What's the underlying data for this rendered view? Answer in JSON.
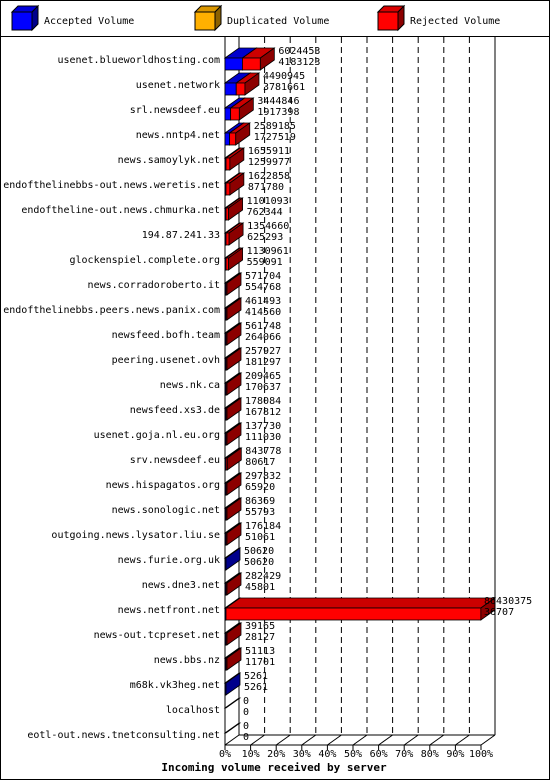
{
  "chart_data": {
    "type": "bar",
    "orientation": "horizontal",
    "style": "3d",
    "xlabel": "Incoming volume received by server",
    "xlim": [
      0,
      100
    ],
    "x_unit": "%",
    "xticks": [
      "0%",
      "10%",
      "20%",
      "30%",
      "40%",
      "50%",
      "60%",
      "70%",
      "80%",
      "90%",
      "100%"
    ],
    "grid": "vertical dashed",
    "legend_position": "top",
    "series": [
      {
        "name": "Accepted Volume",
        "color": "#0000ff"
      },
      {
        "name": "Duplicated Volume",
        "color": "#ffb000"
      },
      {
        "name": "Rejected Volume",
        "color": "#ff0000"
      }
    ],
    "categories": [
      "usenet.blueworldhosting.com",
      "usenet.network",
      "srl.newsdeef.eu",
      "news.nntp4.net",
      "news.samoylyk.net",
      "endofthelinebbs-out.news.weretis.net",
      "endoftheline-out.news.chmurka.net",
      "194.87.241.33",
      "glockenspiel.complete.org",
      "news.corradoroberto.it",
      "endofthelinebbs.peers.news.panix.com",
      "newsfeed.bofh.team",
      "peering.usenet.ovh",
      "news.nk.ca",
      "newsfeed.xs3.de",
      "usenet.goja.nl.eu.org",
      "srv.newsdeef.eu",
      "news.hispagatos.org",
      "news.sonologic.net",
      "outgoing.news.lysator.liu.se",
      "news.furie.org.uk",
      "news.dne3.net",
      "news.netfront.net",
      "news-out.tcpreset.net",
      "news.bbs.nz",
      "m68k.vk3heg.net",
      "localhost",
      "eotl-out.news.tnetconsulting.net"
    ],
    "rows": [
      {
        "server": "usenet.blueworldhosting.com",
        "total_volume": "6024453",
        "accepted_volume": "4183123",
        "accepted_pct": 6.8,
        "rejected_pct": 7.0
      },
      {
        "server": "usenet.network",
        "total_volume": "4490945",
        "accepted_volume": "3781661",
        "accepted_pct": 4.4,
        "rejected_pct": 3.4
      },
      {
        "server": "srl.newsdeef.eu",
        "total_volume": "3444846",
        "accepted_volume": "1917398",
        "accepted_pct": 2.2,
        "rejected_pct": 3.4
      },
      {
        "server": "news.nntp4.net",
        "total_volume": "2589185",
        "accepted_volume": "1727519",
        "accepted_pct": 1.8,
        "rejected_pct": 2.4
      },
      {
        "server": "news.samoylyk.net",
        "total_volume": "1655911",
        "accepted_volume": "1259977",
        "accepted_pct": 0.4,
        "rejected_pct": 1.5
      },
      {
        "server": "endofthelinebbs-out.news.weretis.net",
        "total_volume": "1622858",
        "accepted_volume": "871780",
        "accepted_pct": 0.3,
        "rejected_pct": 1.6
      },
      {
        "server": "endoftheline-out.news.chmurka.net",
        "total_volume": "1101093",
        "accepted_volume": "762344",
        "accepted_pct": 0.3,
        "rejected_pct": 1.1
      },
      {
        "server": "194.87.241.33",
        "total_volume": "1354660",
        "accepted_volume": "625293",
        "accepted_pct": 0.3,
        "rejected_pct": 1.3
      },
      {
        "server": "glockenspiel.complete.org",
        "total_volume": "1130961",
        "accepted_volume": "559091",
        "accepted_pct": 0.3,
        "rejected_pct": 1.1
      },
      {
        "server": "news.corradoroberto.it",
        "total_volume": "571704",
        "accepted_volume": "554768",
        "accepted_pct": 0.3,
        "rejected_pct": 0.3
      },
      {
        "server": "endofthelinebbs.peers.news.panix.com",
        "total_volume": "461493",
        "accepted_volume": "414560",
        "accepted_pct": 0.3,
        "rejected_pct": 0.2
      },
      {
        "server": "newsfeed.bofh.team",
        "total_volume": "561748",
        "accepted_volume": "264066",
        "accepted_pct": 0.2,
        "rejected_pct": 0.4
      },
      {
        "server": "peering.usenet.ovh",
        "total_volume": "257927",
        "accepted_volume": "181297",
        "accepted_pct": 0.1,
        "rejected_pct": 0.1
      },
      {
        "server": "news.nk.ca",
        "total_volume": "209465",
        "accepted_volume": "170637",
        "accepted_pct": 0.1,
        "rejected_pct": 0.1
      },
      {
        "server": "newsfeed.xs3.de",
        "total_volume": "178084",
        "accepted_volume": "167812",
        "accepted_pct": 0.1,
        "rejected_pct": 0.1
      },
      {
        "server": "usenet.goja.nl.eu.org",
        "total_volume": "137730",
        "accepted_volume": "111030",
        "accepted_pct": 0.1,
        "rejected_pct": 0.1
      },
      {
        "server": "srv.newsdeef.eu",
        "total_volume": "843778",
        "accepted_volume": "80617",
        "accepted_pct": 0.1,
        "rejected_pct": 0.8
      },
      {
        "server": "news.hispagatos.org",
        "total_volume": "297832",
        "accepted_volume": "65920",
        "accepted_pct": 0.1,
        "rejected_pct": 0.3
      },
      {
        "server": "news.sonologic.net",
        "total_volume": "86369",
        "accepted_volume": "55793",
        "accepted_pct": 0.05,
        "rejected_pct": 0.05
      },
      {
        "server": "outgoing.news.lysator.liu.se",
        "total_volume": "176184",
        "accepted_volume": "51061",
        "accepted_pct": 0.05,
        "rejected_pct": 0.15
      },
      {
        "server": "news.furie.org.uk",
        "total_volume": "50620",
        "accepted_volume": "50620",
        "accepted_pct": 0.05,
        "rejected_pct": 0
      },
      {
        "server": "news.dne3.net",
        "total_volume": "282429",
        "accepted_volume": "45801",
        "accepted_pct": 0.05,
        "rejected_pct": 0.25
      },
      {
        "server": "news.netfront.net",
        "total_volume": "86430375",
        "accepted_volume": "36707",
        "accepted_pct": 0.05,
        "rejected_pct": 99.9
      },
      {
        "server": "news-out.tcpreset.net",
        "total_volume": "39165",
        "accepted_volume": "28127",
        "accepted_pct": 0.03,
        "rejected_pct": 0.02
      },
      {
        "server": "news.bbs.nz",
        "total_volume": "51113",
        "accepted_volume": "11701",
        "accepted_pct": 0.01,
        "rejected_pct": 0.05
      },
      {
        "server": "m68k.vk3heg.net",
        "total_volume": "5261",
        "accepted_volume": "5261",
        "accepted_pct": 0.01,
        "rejected_pct": 0
      },
      {
        "server": "localhost",
        "total_volume": "0",
        "accepted_volume": "0",
        "accepted_pct": 0,
        "rejected_pct": 0
      },
      {
        "server": "eotl-out.news.tnetconsulting.net",
        "total_volume": "0",
        "accepted_volume": "0",
        "accepted_pct": 0,
        "rejected_pct": 0
      }
    ]
  }
}
